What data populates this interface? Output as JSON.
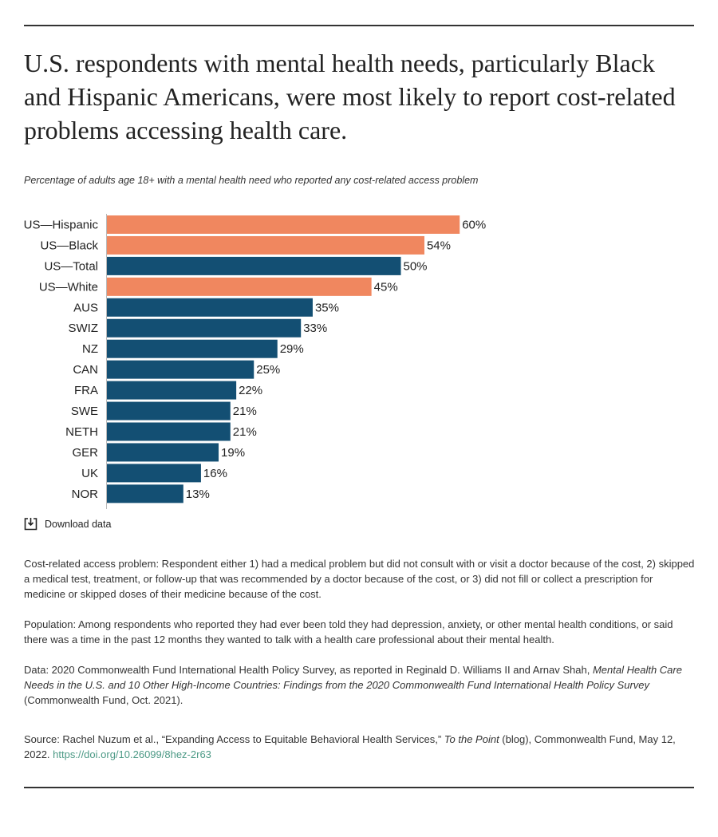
{
  "chart_data": {
    "type": "hbar",
    "title": "U.S. respondents with mental health needs, particularly Black and Hispanic Americans, were most likely to report cost-related problems accessing health care.",
    "subtitle": "Percentage of adults age 18+ with a mental health need who reported any cost-related access problem",
    "categories": [
      "US—Hispanic",
      "US—Black",
      "US—Total",
      "US—White",
      "AUS",
      "SWIZ",
      "NZ",
      "CAN",
      "FRA",
      "SWE",
      "NETH",
      "GER",
      "UK",
      "NOR"
    ],
    "values": [
      60,
      54,
      50,
      45,
      35,
      33,
      29,
      25,
      22,
      21,
      21,
      19,
      16,
      13
    ],
    "value_labels": [
      "60%",
      "54%",
      "50%",
      "45%",
      "35%",
      "33%",
      "29%",
      "25%",
      "22%",
      "21%",
      "21%",
      "19%",
      "16%",
      "13%"
    ],
    "colors": [
      "#f0875f",
      "#f0875f",
      "#134f73",
      "#f0875f",
      "#134f73",
      "#134f73",
      "#134f73",
      "#134f73",
      "#134f73",
      "#134f73",
      "#134f73",
      "#134f73",
      "#134f73",
      "#134f73"
    ]
  },
  "download_label": "Download data",
  "notes": {
    "definition": "Cost-related access problem: Respondent either 1) had a medical problem but did not consult with or visit a doctor because of the cost, 2) skipped a medical test, treatment, or follow-up that was recommended by a doctor because of the cost, or 3) did not fill or collect a prescription for medicine or skipped doses of their medicine because of the cost.",
    "population": "Population: Among respondents who reported they had ever been told they had depression, anxiety, or other mental health conditions, or said there was a time in the past 12 months they wanted to talk with a health care professional about their mental health.",
    "data": {
      "before": "Data: 2020 Commonwealth Fund International Health Policy Survey, as reported in Reginald D. Williams II and Arnav Shah, ",
      "italic": "Mental Health Care Needs in the U.S. and 10 Other High-Income Countries: Findings from the 2020 Commonwealth Fund International Health Policy Survey",
      "after": " (Commonwealth Fund, Oct. 2021)."
    },
    "source": {
      "before": "Source: Rachel Nuzum et al., “Expanding Access to Equitable Behavioral Health Services,” ",
      "italic": "To the Point",
      "after": " (blog), Commonwealth Fund, May 12, 2022. ",
      "link": "https://doi.org/10.26099/8hez-2r63"
    }
  }
}
